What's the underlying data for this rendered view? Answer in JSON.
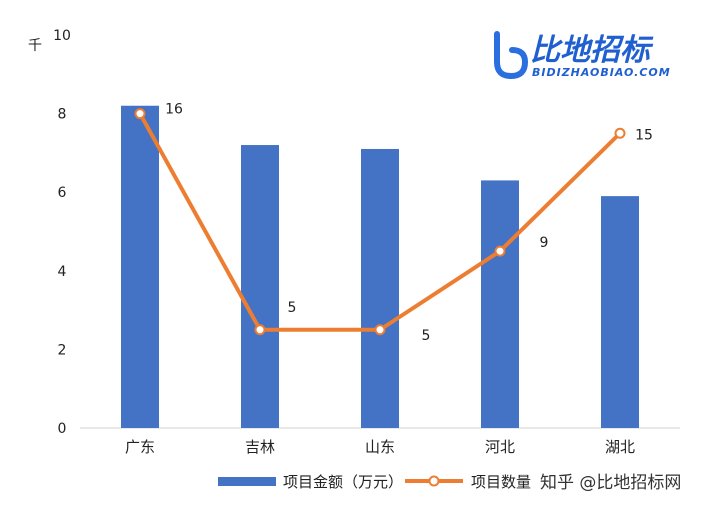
{
  "chart_data": {
    "type": "bar+line",
    "categories": [
      "广东",
      "吉林",
      "山东",
      "河北",
      "湖北"
    ],
    "series": [
      {
        "name": "项目金额（万元）",
        "type": "bar",
        "axis": "left",
        "color": "#4472c4",
        "values": [
          8.2,
          7.2,
          7.1,
          6.3,
          5.9
        ]
      },
      {
        "name": "项目数量",
        "type": "line",
        "axis": "right",
        "color": "#ed7d31",
        "values": [
          16,
          5,
          5,
          9,
          15
        ],
        "data_labels": [
          "16",
          "5",
          "5",
          "9",
          "15"
        ]
      }
    ],
    "y_left": {
      "unit_label": "千",
      "min": 0,
      "max": 10,
      "ticks": [
        0,
        2,
        4,
        6,
        8,
        10
      ]
    },
    "y_right": {
      "min": 0,
      "max": 20
    },
    "legend_position": "bottom",
    "grid": false
  },
  "logo": {
    "text": "比地招标",
    "subtext": "BIDIZHAOBIAO.COM"
  },
  "watermark": "知乎 @比地招标网"
}
